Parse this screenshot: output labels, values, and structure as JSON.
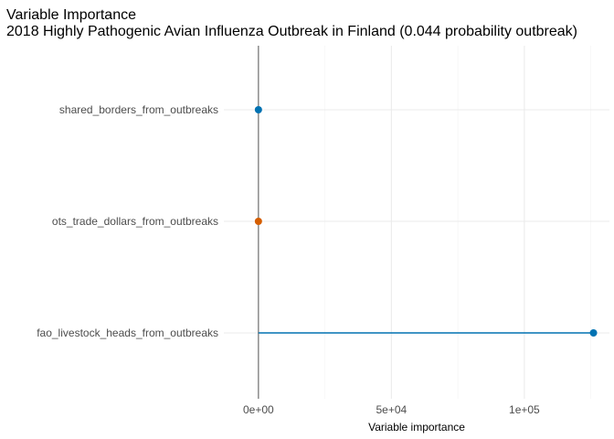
{
  "chart_data": {
    "type": "lollipop",
    "title": "Variable Importance",
    "subtitle": "2018 Highly Pathogenic Avian Influenza Outbreak in Finland (0.044 probability outbreak)",
    "xlabel": "Variable importance",
    "ylabel": "",
    "categories": [
      "shared_borders_from_outbreaks",
      "ots_trade_dollars_from_outbreaks",
      "fao_livestock_heads_from_outbreaks"
    ],
    "values": [
      0,
      0,
      126000
    ],
    "point_colors": [
      "#0072B2",
      "#D55E00",
      "#0072B2"
    ],
    "xlim": [
      -13000,
      132000
    ],
    "x_ticks": [
      0,
      50000,
      100000
    ],
    "x_tick_labels": [
      "0e+00",
      "5e+04",
      "1e+05"
    ],
    "x_minor_ticks": [
      25000,
      75000,
      125000
    ],
    "grid": true,
    "legend": "none"
  }
}
